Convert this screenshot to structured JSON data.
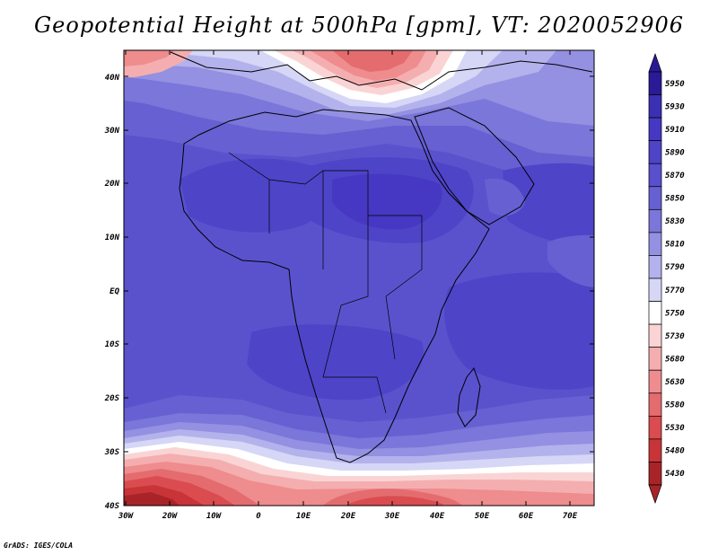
{
  "title": "Geopotential Height at 500hPa [gpm], VT: 2020052906",
  "footer": "GrADS: IGES/COLA",
  "lat_labels": [
    "40N",
    "30N",
    "20N",
    "10N",
    "EQ",
    "10S",
    "20S",
    "30S",
    "40S"
  ],
  "lon_labels": [
    "30W",
    "20W",
    "10W",
    "0",
    "10E",
    "20E",
    "30E",
    "40E",
    "50E",
    "60E",
    "70E"
  ],
  "colorbar": {
    "levels": [
      "5950",
      "5930",
      "5910",
      "5890",
      "5870",
      "5850",
      "5830",
      "5810",
      "5790",
      "5770",
      "5750",
      "5730",
      "5680",
      "5630",
      "5580",
      "5530",
      "5480",
      "5430"
    ],
    "colors": [
      "#2a1a96",
      "#3a30b4",
      "#4638c2",
      "#4e44c8",
      "#5850cc",
      "#6660d2",
      "#7a76da",
      "#9490e2",
      "#b4b2ec",
      "#d6d6f6",
      "#ffffff",
      "#fad4d4",
      "#f4aeb0",
      "#ee8c8e",
      "#e46c6e",
      "#da4c50",
      "#c83438",
      "#a82428"
    ]
  },
  "map": {
    "field": "Geopotential height at 500 hPa",
    "units": "gpm",
    "valid_time": "2020052906",
    "extent": {
      "lon_min": -30,
      "lon_max": 75,
      "lat_min": -40,
      "lat_max": 45
    }
  }
}
